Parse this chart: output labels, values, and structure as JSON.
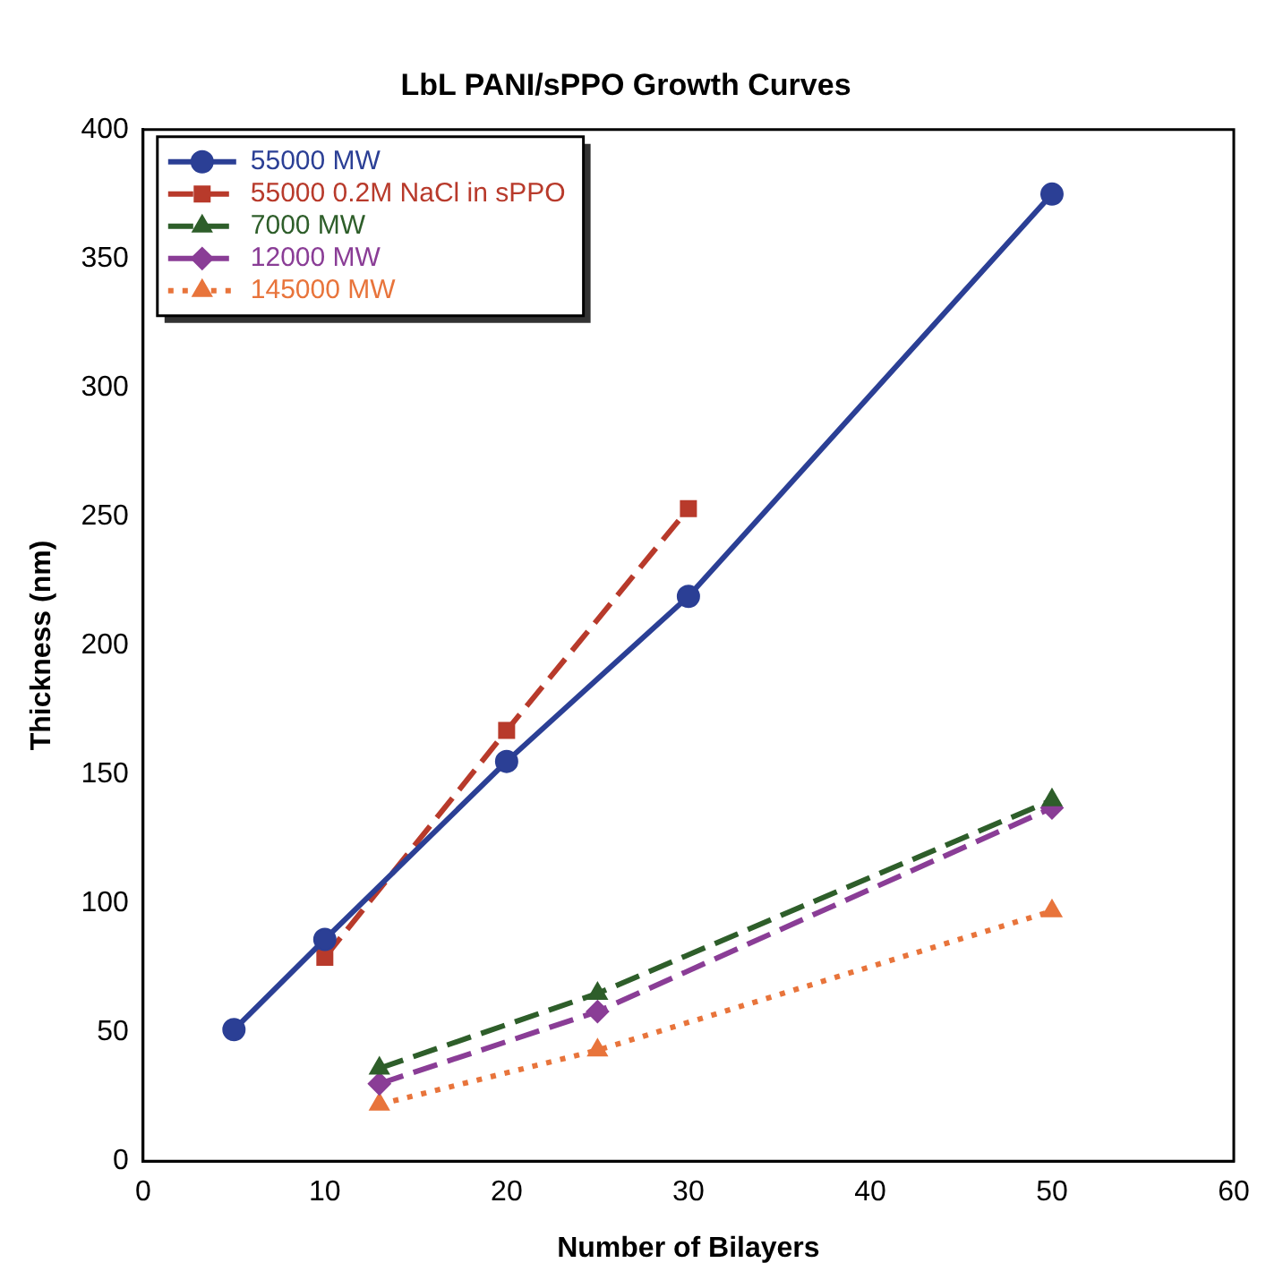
{
  "chart_data": {
    "type": "line",
    "title": "LbL PANI/sPPO Growth Curves",
    "xlabel": "Number of Bilayers",
    "ylabel": "Thickness (nm)",
    "xlim": [
      0,
      60
    ],
    "xticks": [
      0,
      10,
      20,
      30,
      40,
      50,
      60
    ],
    "ylim": [
      0,
      400
    ],
    "yticks": [
      0,
      50,
      100,
      150,
      200,
      250,
      300,
      350,
      400
    ],
    "grid": false,
    "legend": "top left",
    "series": [
      {
        "name": "55000 MW",
        "color": "#2b3f95",
        "x": [
          5,
          10,
          20,
          30,
          50
        ],
        "values": [
          51,
          86,
          155,
          219,
          375
        ],
        "marker": "circle",
        "line_style": "solid"
      },
      {
        "name": "55000 0.2M NaCl in sPPO",
        "color": "#b83a2b",
        "x": [
          10,
          20,
          30
        ],
        "values": [
          79,
          167,
          253
        ],
        "marker": "square",
        "line_style": "dashed"
      },
      {
        "name": "7000 MW",
        "color": "#2e5e2a",
        "x": [
          13,
          25,
          50
        ],
        "values": [
          36,
          65,
          140
        ],
        "marker": "triangle",
        "line_style": "dashed"
      },
      {
        "name": "12000 MW",
        "color": "#8a3d96",
        "x": [
          13,
          25,
          50
        ],
        "values": [
          30,
          58,
          137
        ],
        "marker": "diamond",
        "line_style": "dashed"
      },
      {
        "name": "145000 MW",
        "color": "#e8743b",
        "x": [
          13,
          25,
          50
        ],
        "values": [
          22,
          43,
          97
        ],
        "marker": "triangle",
        "line_style": "dotted"
      }
    ]
  }
}
